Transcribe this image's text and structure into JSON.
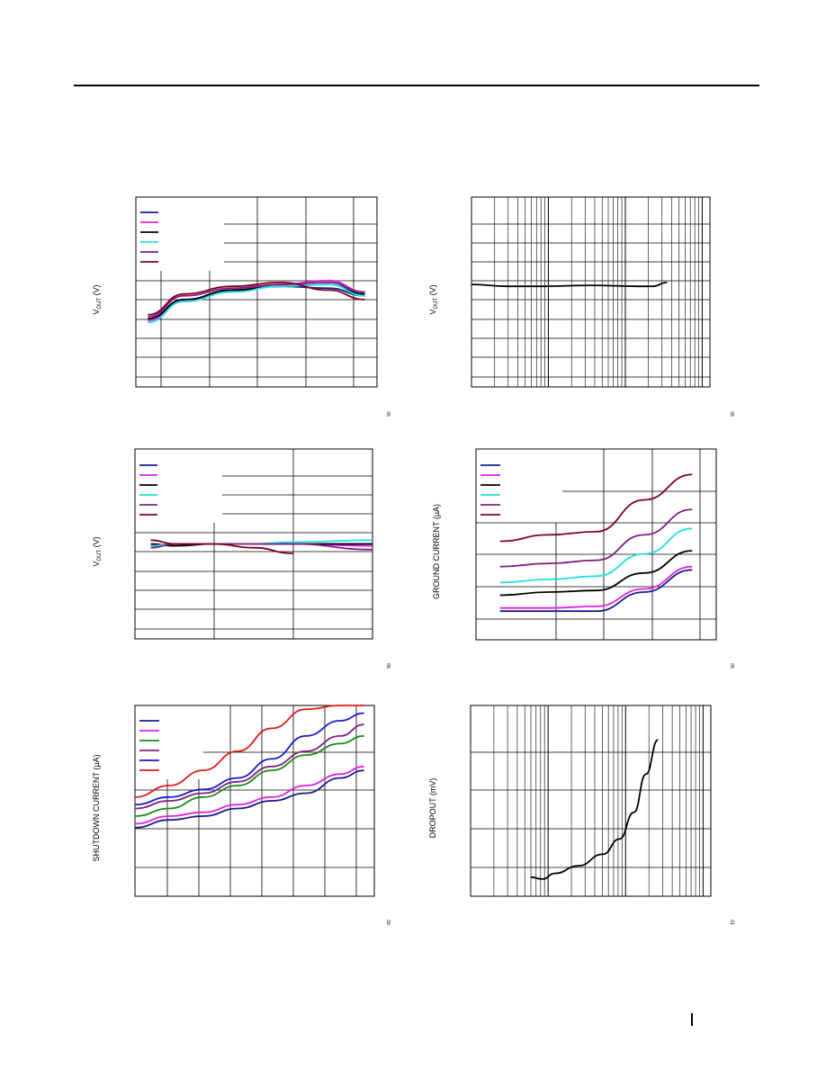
{
  "page": {
    "footer_mark_color": "#000000"
  },
  "chart_data": [
    {
      "id": "c1",
      "type": "line",
      "grid": true,
      "legend": "top-left",
      "ylabel_main": "V",
      "ylabel_sub": "OUT",
      "ylabel_unit": " (V)",
      "fig_code": "06",
      "xlim": [
        0,
        10
      ],
      "ylim": [
        0,
        10
      ],
      "series": [
        {
          "color": "#1a1a8c",
          "x": [
            0.5,
            2,
            4,
            6,
            8,
            9.5
          ],
          "y": [
            3.6,
            4.6,
            5.1,
            5.3,
            5.2,
            4.8
          ]
        },
        {
          "color": "#e020e0",
          "x": [
            0.5,
            2,
            4,
            6,
            8,
            9.5
          ],
          "y": [
            3.5,
            4.5,
            5.1,
            5.4,
            5.6,
            5.0
          ]
        },
        {
          "color": "#000000",
          "x": [
            0.5,
            2,
            4,
            6,
            8,
            9.5
          ],
          "y": [
            3.6,
            4.6,
            5.1,
            5.3,
            5.4,
            4.9
          ]
        },
        {
          "color": "#20e0e0",
          "x": [
            0.5,
            2,
            4,
            6,
            8,
            9.5
          ],
          "y": [
            3.4,
            4.5,
            5.0,
            5.3,
            5.4,
            4.8
          ]
        },
        {
          "color": "#802080",
          "x": [
            0.5,
            2,
            4,
            6,
            8,
            9.5
          ],
          "y": [
            3.7,
            4.8,
            5.2,
            5.4,
            5.5,
            5.0
          ]
        },
        {
          "color": "#800020",
          "x": [
            0.5,
            2,
            4,
            6,
            8,
            9.5
          ],
          "y": [
            3.8,
            4.9,
            5.3,
            5.5,
            5.1,
            4.6
          ]
        }
      ]
    },
    {
      "id": "c2",
      "type": "line",
      "grid": true,
      "xscale": "log",
      "ylabel_main": "V",
      "ylabel_sub": "OUT",
      "ylabel_unit": " (V)",
      "fig_code": "06",
      "xlim": [
        0,
        10
      ],
      "ylim": [
        0,
        10
      ],
      "series": [
        {
          "color": "#000000",
          "x": [
            0,
            1.5,
            3,
            5,
            7,
            7.6,
            8.2
          ],
          "y": [
            5.4,
            5.3,
            5.3,
            5.35,
            5.3,
            5.3,
            5.5
          ]
        }
      ]
    },
    {
      "id": "c3",
      "type": "line",
      "grid": true,
      "legend": "top-left",
      "ylabel_main": "V",
      "ylabel_sub": "OUT",
      "ylabel_unit": " (V)",
      "fig_code": "06",
      "xlim": [
        0,
        3
      ],
      "ylim": [
        0,
        10
      ],
      "series": [
        {
          "color": "#1a1a8c",
          "x": [
            0.2,
            0.5,
            1,
            1.5,
            2,
            3
          ],
          "y": [
            4.9,
            5.0,
            5.0,
            5.0,
            5.0,
            5.0
          ]
        },
        {
          "color": "#e020e0",
          "x": [
            0.2,
            0.5,
            1,
            1.5,
            2,
            3
          ],
          "y": [
            4.9,
            5.0,
            5.0,
            5.0,
            5.0,
            4.9
          ]
        },
        {
          "color": "#000000",
          "x": [
            0.2,
            0.5,
            1,
            1.5,
            2,
            3
          ],
          "y": [
            5.0,
            4.9,
            5.0,
            5.0,
            5.0,
            5.0
          ]
        },
        {
          "color": "#20e0e0",
          "x": [
            0.2,
            0.5,
            1,
            1.5,
            2,
            3
          ],
          "y": [
            4.9,
            5.0,
            5.0,
            5.0,
            5.1,
            5.2
          ]
        },
        {
          "color": "#802080",
          "x": [
            0.2,
            0.5,
            1,
            1.5,
            2,
            3
          ],
          "y": [
            4.8,
            5.0,
            5.0,
            5.0,
            5.0,
            4.7
          ]
        },
        {
          "color": "#800020",
          "x": [
            0.2,
            0.5,
            1,
            1.5,
            2
          ],
          "y": [
            5.2,
            5.0,
            5.0,
            4.8,
            4.5
          ]
        }
      ]
    },
    {
      "id": "c4",
      "type": "line",
      "grid": true,
      "legend": "top-left",
      "ylabel": "GROUND CURRENT (µA)",
      "fig_code": "05",
      "xlim": [
        0,
        5
      ],
      "ylim": [
        0,
        6
      ],
      "series": [
        {
          "color": "#1a1a8c",
          "x": [
            0.5,
            1.5,
            2.5,
            3.5,
            4.5
          ],
          "y": [
            0.9,
            0.9,
            0.9,
            1.5,
            2.2
          ]
        },
        {
          "color": "#e020e0",
          "x": [
            0.5,
            1.5,
            2.5,
            3.5,
            4.5
          ],
          "y": [
            1.0,
            1.0,
            1.05,
            1.6,
            2.3
          ]
        },
        {
          "color": "#000000",
          "x": [
            0.5,
            1.5,
            2.5,
            3.5,
            4.5
          ],
          "y": [
            1.4,
            1.5,
            1.55,
            2.1,
            2.8
          ]
        },
        {
          "color": "#20e0e0",
          "x": [
            0.5,
            1.5,
            2.5,
            3.5,
            4.5
          ],
          "y": [
            1.8,
            1.9,
            2.0,
            2.7,
            3.5
          ]
        },
        {
          "color": "#802080",
          "x": [
            0.5,
            1.5,
            2.5,
            3.5,
            4.5
          ],
          "y": [
            2.3,
            2.4,
            2.5,
            3.3,
            4.1
          ]
        },
        {
          "color": "#800020",
          "x": [
            0.5,
            1.5,
            2.5,
            3.5,
            4.5
          ],
          "y": [
            3.1,
            3.3,
            3.4,
            4.4,
            5.2
          ]
        }
      ]
    },
    {
      "id": "c5",
      "type": "line",
      "grid": true,
      "legend": "top-left",
      "ylabel": "SHUTDOWN CURRENT (µA)",
      "fig_code": "09",
      "xlim": [
        0,
        7
      ],
      "ylim": [
        0,
        5
      ],
      "series": [
        {
          "color": "#1a1a8c",
          "x": [
            0,
            1,
            2,
            3,
            4,
            5,
            6,
            6.7
          ],
          "y": [
            1.8,
            2.0,
            2.1,
            2.3,
            2.5,
            2.7,
            3.1,
            3.3
          ]
        },
        {
          "color": "#e020e0",
          "x": [
            0,
            1,
            2,
            3,
            4,
            5,
            6,
            6.7
          ],
          "y": [
            1.9,
            2.1,
            2.2,
            2.4,
            2.6,
            2.9,
            3.2,
            3.4
          ]
        },
        {
          "color": "#1a8c1a",
          "x": [
            0,
            1,
            2,
            3,
            4,
            5,
            6,
            6.7
          ],
          "y": [
            2.1,
            2.3,
            2.6,
            2.9,
            3.3,
            3.7,
            4.0,
            4.2
          ]
        },
        {
          "color": "#802080",
          "x": [
            0,
            1,
            2,
            3,
            4,
            5,
            6,
            6.7
          ],
          "y": [
            2.3,
            2.5,
            2.7,
            3.0,
            3.4,
            3.8,
            4.2,
            4.5
          ]
        },
        {
          "color": "#1a1ad0",
          "x": [
            0,
            1,
            2,
            3,
            4,
            5,
            6,
            6.7
          ],
          "y": [
            2.4,
            2.6,
            2.8,
            3.1,
            3.6,
            4.2,
            4.6,
            4.8
          ]
        },
        {
          "color": "#e01a1a",
          "x": [
            0,
            1,
            2,
            3,
            4,
            5,
            6,
            6.7
          ],
          "y": [
            2.6,
            2.9,
            3.3,
            3.8,
            4.4,
            4.9,
            5.0,
            5.0
          ]
        }
      ]
    },
    {
      "id": "c6",
      "type": "line",
      "grid": true,
      "xscale": "log",
      "ylabel": "DROPOUT (mV)",
      "fig_code": "01",
      "xlim": [
        0,
        10
      ],
      "ylim": [
        0,
        5
      ],
      "series": [
        {
          "color": "#000000",
          "x": [
            2.5,
            3.0,
            3.5,
            4.5,
            5.5,
            6.2,
            6.8,
            7.3,
            7.8
          ],
          "y": [
            0.5,
            0.45,
            0.6,
            0.8,
            1.1,
            1.5,
            2.2,
            3.2,
            4.1
          ]
        }
      ]
    }
  ]
}
